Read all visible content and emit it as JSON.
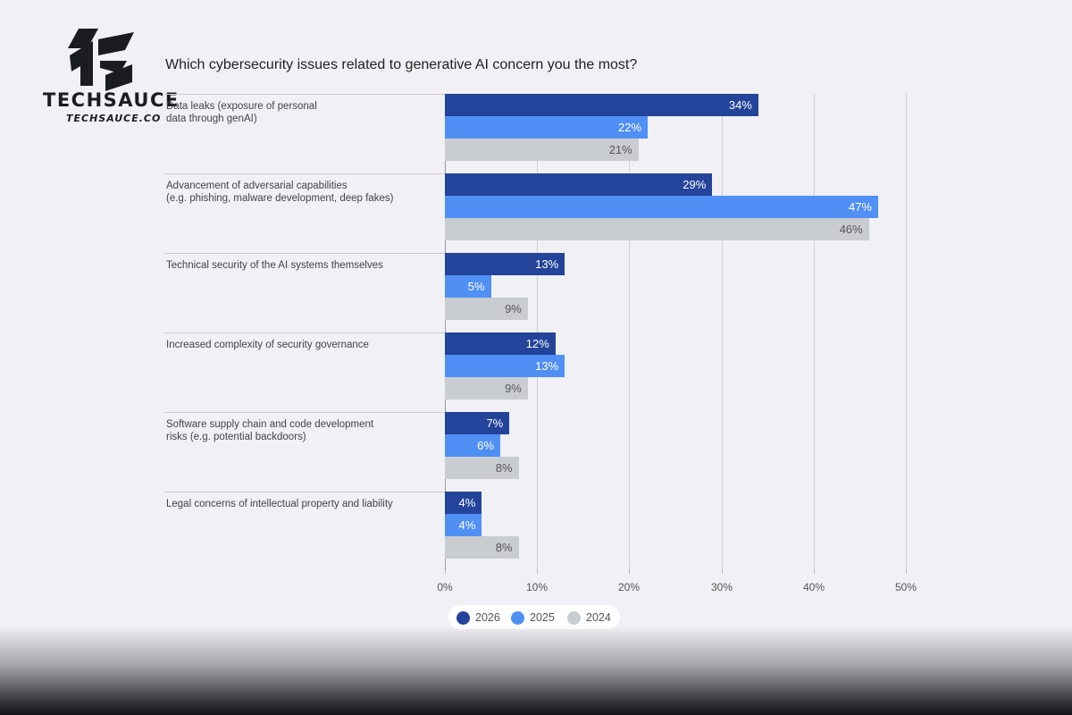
{
  "brand": {
    "name": "TECHSAUCE",
    "site": "TECHSAUCE.CO"
  },
  "chart_data": {
    "type": "bar",
    "orientation": "horizontal",
    "title": "Which cybersecurity issues related to generative AI concern you the most?",
    "categories": [
      "Data leaks (exposure of personal\ndata through genAI)",
      "Advancement of adversarial capabilities\n(e.g. phishing, malware development, deep fakes)",
      "Technical security of the AI systems themselves",
      "Increased complexity of security governance",
      "Software supply chain and code development\nrisks (e.g. potential backdoors)",
      "Legal concerns of intellectual property and liability"
    ],
    "series": [
      {
        "name": "2026",
        "color": "#23449a",
        "label_color": "#ffffff",
        "values": [
          34,
          29,
          13,
          12,
          7,
          4
        ],
        "labels": [
          "34%",
          "29%",
          "13%",
          "12%",
          "7%",
          "4%"
        ]
      },
      {
        "name": "2025",
        "color": "#5090f5",
        "label_color": "#ffffff",
        "values": [
          22,
          47,
          5,
          13,
          6,
          4
        ],
        "labels": [
          "22%",
          "47%",
          "5%",
          "13%",
          "6%",
          "4%"
        ]
      },
      {
        "name": "2024",
        "color": "#c9ccd1",
        "label_color": "#555555",
        "values": [
          21,
          46,
          9,
          9,
          8,
          8
        ],
        "labels": [
          "21%",
          "46%",
          "9%",
          "9%",
          "8%",
          "8%"
        ]
      }
    ],
    "xlim": [
      0,
      50
    ],
    "xticks": [
      "0%",
      "10%",
      "20%",
      "30%",
      "40%",
      "50%"
    ],
    "grid": true,
    "legend": "bottom-center",
    "xlabel": "",
    "ylabel": ""
  }
}
